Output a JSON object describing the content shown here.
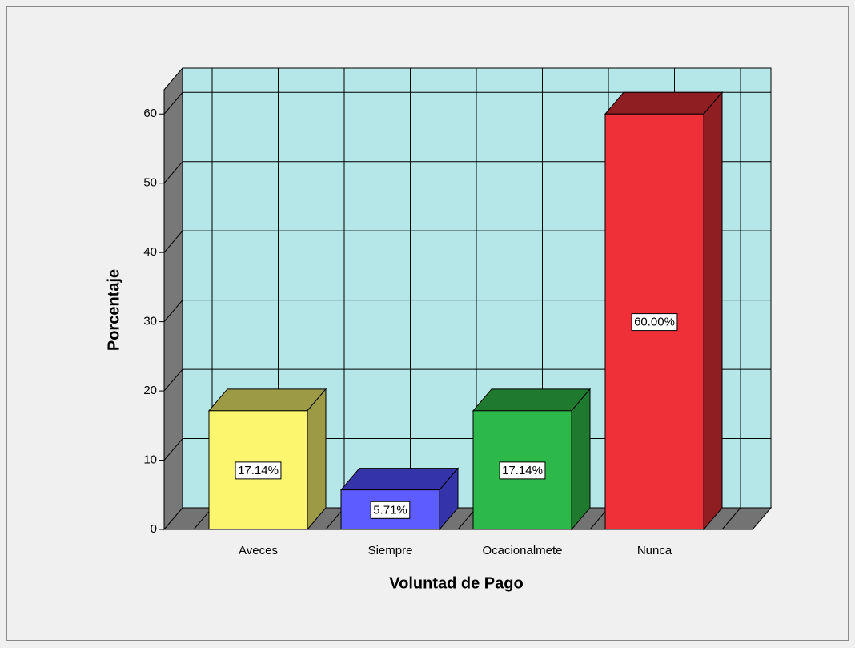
{
  "chart_data": {
    "type": "bar3d",
    "xlabel": "Voluntad de Pago",
    "ylabel": "Porcentaje",
    "categories": [
      "Aveces",
      "Siempre",
      "Ocacionalmete",
      "Nunca"
    ],
    "values": [
      17.14,
      5.71,
      17.14,
      60.0
    ],
    "value_labels": [
      "17.14%",
      "5.71%",
      "17.14%",
      "60.00%"
    ],
    "colors": [
      "#fbf66e",
      "#5c5cff",
      "#2db84a",
      "#f03039"
    ],
    "side_colors": [
      "#9c9a45",
      "#3434a8",
      "#1f7a30",
      "#8e1e22"
    ],
    "ylim": [
      0,
      63.5
    ],
    "yticks": [
      0,
      10,
      20,
      30,
      40,
      50,
      60
    ],
    "grid": true
  }
}
